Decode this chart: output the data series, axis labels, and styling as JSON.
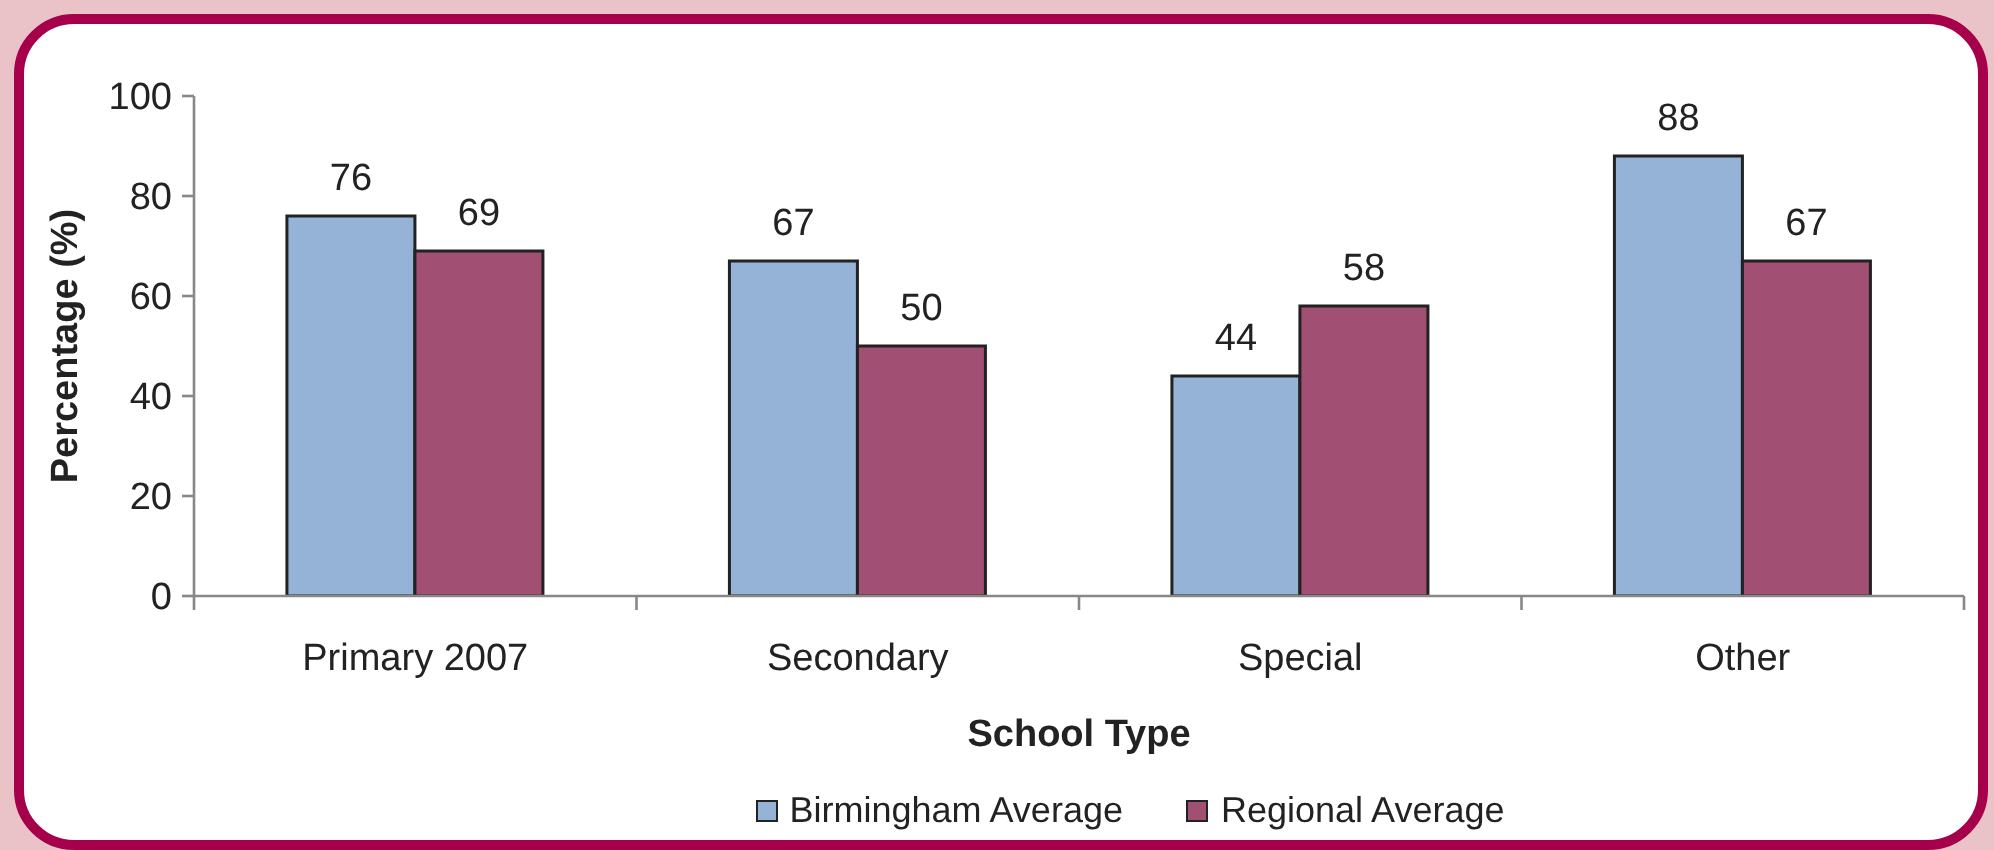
{
  "chart_data": {
    "type": "bar",
    "xlabel": "School Type",
    "ylabel": "Percentage (%)",
    "categories": [
      "Primary 2007",
      "Secondary",
      "Special",
      "Other"
    ],
    "series": [
      {
        "name": "Birmingham Average",
        "color": "#95b3d7",
        "values": [
          76,
          67,
          44,
          88
        ]
      },
      {
        "name": "Regional Average",
        "color": "#a14f72",
        "values": [
          69,
          50,
          58,
          67
        ]
      }
    ],
    "ylim": [
      0,
      100
    ],
    "yticks": [
      0,
      20,
      40,
      60,
      80,
      100
    ],
    "data_labels": true,
    "legend": "bottom"
  }
}
